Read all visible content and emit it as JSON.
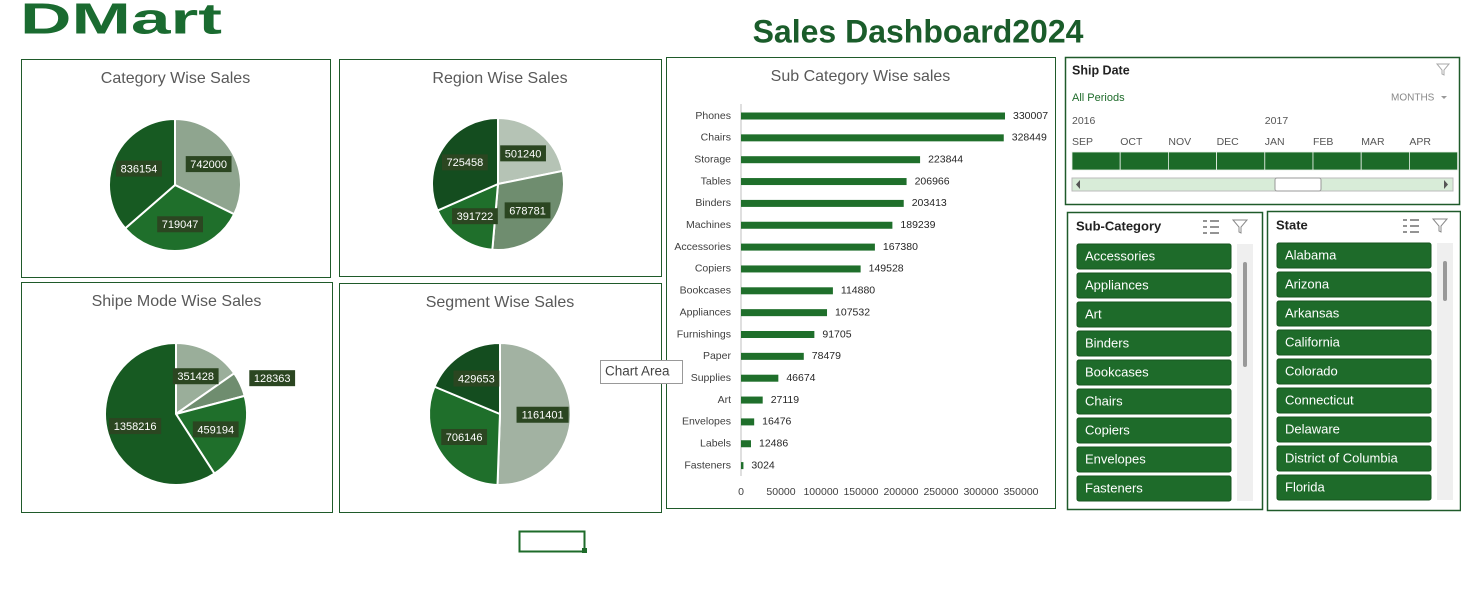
{
  "logo": "DMart",
  "title": "Sales Dashboard2024",
  "chart_data": [
    {
      "type": "pie",
      "title": "Category Wise Sales",
      "values": [
        742000,
        719047,
        836154
      ],
      "colors": [
        "#8fa58f",
        "#1f6f2b",
        "#175a22"
      ]
    },
    {
      "type": "pie",
      "title": "Region Wise Sales",
      "values": [
        501240,
        678781,
        391722,
        725458
      ],
      "colors": [
        "#b5c3b5",
        "#6f8d6f",
        "#1f6f2b",
        "#144d1f"
      ]
    },
    {
      "type": "pie",
      "title": "Shipe Mode Wise Sales",
      "values": [
        351428,
        128363,
        459194,
        1358216
      ],
      "colors": [
        "#9aae9a",
        "#6f8d6f",
        "#1f6f2b",
        "#175a22"
      ]
    },
    {
      "type": "pie",
      "title": "Segment Wise Sales",
      "values": [
        1161401,
        706146,
        429653
      ],
      "colors": [
        "#a2b2a2",
        "#1f6f2b",
        "#144d1f"
      ]
    },
    {
      "type": "bar",
      "orientation": "horizontal",
      "title": "Sub Category Wise sales",
      "categories": [
        "Phones",
        "Chairs",
        "Storage",
        "Tables",
        "Binders",
        "Machines",
        "Accessories",
        "Copiers",
        "Bookcases",
        "Appliances",
        "Furnishings",
        "Paper",
        "Supplies",
        "Art",
        "Envelopes",
        "Labels",
        "Fasteners"
      ],
      "values": [
        330007,
        328449,
        223844,
        206966,
        203413,
        189239,
        167380,
        149528,
        114880,
        107532,
        91705,
        78479,
        46674,
        27119,
        16476,
        12486,
        3024
      ],
      "color": "#1f6f2b",
      "xlim": [
        0,
        350000
      ],
      "xticks": [
        0,
        50000,
        100000,
        150000,
        200000,
        250000,
        300000,
        350000
      ]
    }
  ],
  "timeline": {
    "title": "Ship Date",
    "period": "All Periods",
    "unit": "MONTHS",
    "years": [
      "2016",
      "2017"
    ],
    "months": [
      "SEP",
      "OCT",
      "NOV",
      "DEC",
      "JAN",
      "FEB",
      "MAR",
      "APR"
    ]
  },
  "slicers": [
    {
      "title": "Sub-Category",
      "items": [
        "Accessories",
        "Appliances",
        "Art",
        "Binders",
        "Bookcases",
        "Chairs",
        "Copiers",
        "Envelopes",
        "Fasteners"
      ]
    },
    {
      "title": "State",
      "items": [
        "Alabama",
        "Arizona",
        "Arkansas",
        "California",
        "Colorado",
        "Connecticut",
        "Delaware",
        "District of Columbia",
        "Florida"
      ]
    }
  ],
  "tooltip": "Chart Area"
}
